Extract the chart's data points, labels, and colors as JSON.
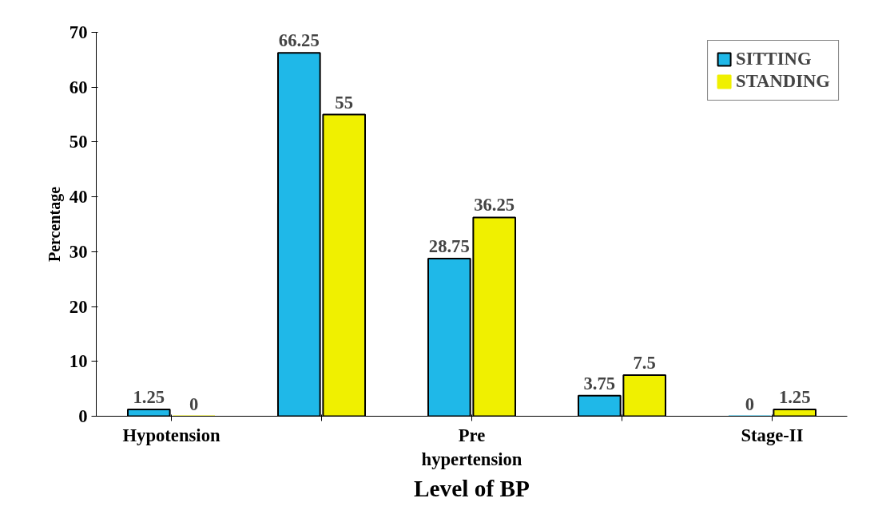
{
  "chart_data": {
    "type": "bar",
    "xlabel": "Level of BP",
    "ylabel": "Percentage",
    "categories": [
      "Hypotension",
      null,
      "Pre hypertension",
      null,
      "Stage-II"
    ],
    "series": [
      {
        "name": "SITTING",
        "color": "#1fb8e8",
        "values": [
          1.25,
          66.25,
          28.75,
          3.75,
          0
        ]
      },
      {
        "name": "STANDING",
        "color": "#f0f000",
        "values": [
          0,
          55,
          36.25,
          7.5,
          1.25
        ]
      }
    ],
    "ylim": [
      0,
      70
    ],
    "yticks": [
      0,
      10,
      20,
      30,
      40,
      50,
      60,
      70
    ],
    "data_labels": true,
    "legend": "top right",
    "grid": false
  }
}
